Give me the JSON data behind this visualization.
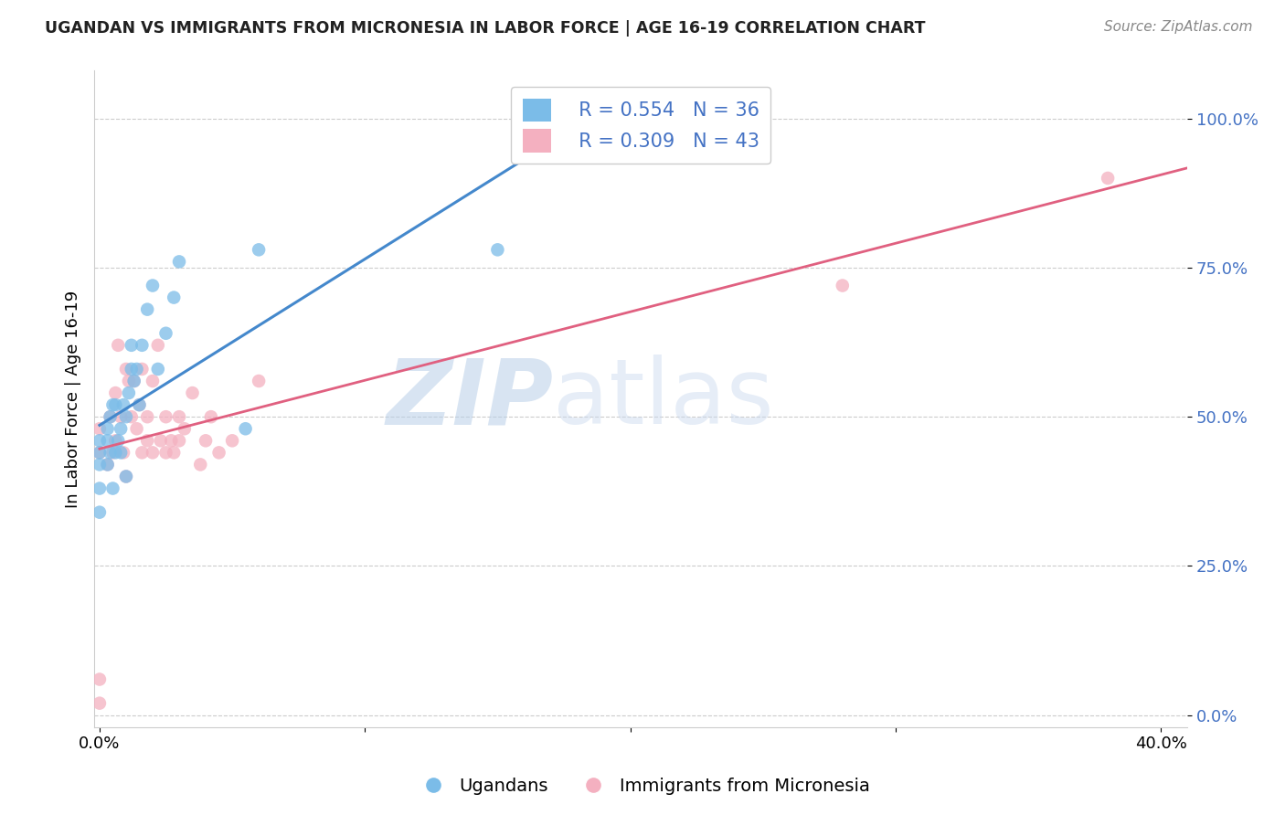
{
  "title": "UGANDAN VS IMMIGRANTS FROM MICRONESIA IN LABOR FORCE | AGE 16-19 CORRELATION CHART",
  "source": "Source: ZipAtlas.com",
  "ylabel": "In Labor Force | Age 16-19",
  "xlim": [
    -0.002,
    0.41
  ],
  "ylim": [
    -0.02,
    1.08
  ],
  "yticks": [
    0.0,
    0.25,
    0.5,
    0.75,
    1.0
  ],
  "ytick_labels": [
    "0.0%",
    "25.0%",
    "50.0%",
    "75.0%",
    "100.0%"
  ],
  "xticks": [
    0.0,
    0.1,
    0.2,
    0.3,
    0.4
  ],
  "xtick_labels": [
    "0.0%",
    "",
    "",
    "",
    "40.0%"
  ],
  "legend_r1": "R = 0.554",
  "legend_n1": "N = 36",
  "legend_r2": "R = 0.309",
  "legend_n2": "N = 43",
  "blue_color": "#7bbce8",
  "pink_color": "#f4b0c0",
  "line_blue": "#4488cc",
  "line_pink": "#e06080",
  "watermark_zip": "ZIP",
  "watermark_atlas": "atlas",
  "ugandan_x": [
    0.0,
    0.0,
    0.0,
    0.0,
    0.0,
    0.003,
    0.003,
    0.003,
    0.004,
    0.004,
    0.005,
    0.005,
    0.006,
    0.006,
    0.007,
    0.008,
    0.008,
    0.009,
    0.01,
    0.01,
    0.011,
    0.012,
    0.012,
    0.013,
    0.014,
    0.015,
    0.016,
    0.018,
    0.02,
    0.022,
    0.025,
    0.028,
    0.03,
    0.055,
    0.06,
    0.15
  ],
  "ugandan_y": [
    0.34,
    0.38,
    0.42,
    0.44,
    0.46,
    0.42,
    0.46,
    0.48,
    0.44,
    0.5,
    0.38,
    0.52,
    0.44,
    0.52,
    0.46,
    0.44,
    0.48,
    0.52,
    0.4,
    0.5,
    0.54,
    0.58,
    0.62,
    0.56,
    0.58,
    0.52,
    0.62,
    0.68,
    0.72,
    0.58,
    0.64,
    0.7,
    0.76,
    0.48,
    0.78,
    0.78
  ],
  "micronesia_x": [
    0.0,
    0.0,
    0.0,
    0.0,
    0.003,
    0.004,
    0.005,
    0.006,
    0.006,
    0.007,
    0.008,
    0.009,
    0.01,
    0.01,
    0.011,
    0.012,
    0.013,
    0.014,
    0.015,
    0.016,
    0.016,
    0.018,
    0.018,
    0.02,
    0.02,
    0.022,
    0.023,
    0.025,
    0.025,
    0.027,
    0.028,
    0.03,
    0.03,
    0.032,
    0.035,
    0.038,
    0.04,
    0.042,
    0.045,
    0.05,
    0.06,
    0.28,
    0.38
  ],
  "micronesia_y": [
    0.02,
    0.06,
    0.44,
    0.48,
    0.42,
    0.5,
    0.44,
    0.46,
    0.54,
    0.62,
    0.5,
    0.44,
    0.4,
    0.58,
    0.56,
    0.5,
    0.56,
    0.48,
    0.52,
    0.58,
    0.44,
    0.46,
    0.5,
    0.44,
    0.56,
    0.62,
    0.46,
    0.44,
    0.5,
    0.46,
    0.44,
    0.46,
    0.5,
    0.48,
    0.54,
    0.42,
    0.46,
    0.5,
    0.44,
    0.46,
    0.56,
    0.72,
    0.9
  ]
}
